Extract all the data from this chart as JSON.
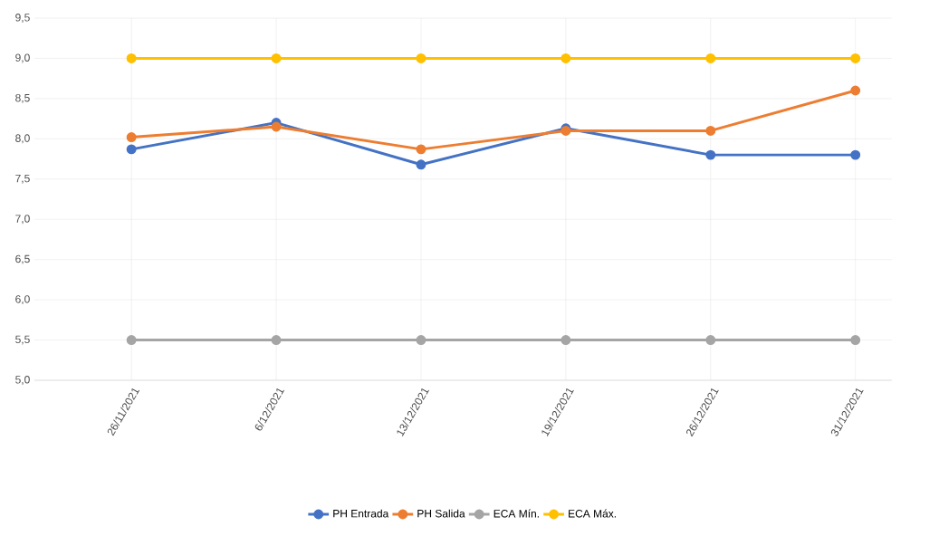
{
  "chart_data": {
    "type": "line",
    "categories": [
      "26/11/2021",
      "6/12/2021",
      "13/12/2021",
      "19/12/2021",
      "26/12/2021",
      "31/12/2021"
    ],
    "series": [
      {
        "name": "PH Entrada",
        "color": "#4472c4",
        "values": [
          7.87,
          8.2,
          7.68,
          8.13,
          7.8,
          7.8
        ]
      },
      {
        "name": "PH Salida",
        "color": "#ed7d31",
        "values": [
          8.02,
          8.15,
          7.87,
          8.1,
          8.1,
          8.6
        ]
      },
      {
        "name": "ECA Mín.",
        "color": "#a5a5a5",
        "values": [
          5.5,
          5.5,
          5.5,
          5.5,
          5.5,
          5.5
        ]
      },
      {
        "name": "ECA Máx.",
        "color": "#ffc000",
        "values": [
          9.0,
          9.0,
          9.0,
          9.0,
          9.0,
          9.0
        ]
      }
    ],
    "ylim": [
      5.0,
      9.5
    ],
    "yticks": [
      {
        "value": 5.0,
        "label": "5,0"
      },
      {
        "value": 5.5,
        "label": "5,5"
      },
      {
        "value": 6.0,
        "label": "6,0"
      },
      {
        "value": 6.5,
        "label": "6,5"
      },
      {
        "value": 7.0,
        "label": "7,0"
      },
      {
        "value": 7.5,
        "label": "7,5"
      },
      {
        "value": 8.0,
        "label": "8,0"
      },
      {
        "value": 8.5,
        "label": "8,5"
      },
      {
        "value": 9.0,
        "label": "9,0"
      },
      {
        "value": 9.5,
        "label": "9,5"
      }
    ],
    "grid": true,
    "legend": "bottom",
    "marker": "circle",
    "line_style": "solid"
  }
}
